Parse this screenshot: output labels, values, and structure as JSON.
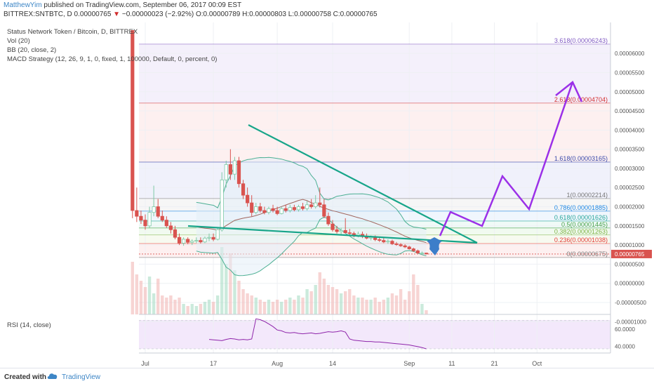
{
  "header": {
    "author": "MatthewYim",
    "published": " published on TradingView.com, September 06, 2017 00:09 EST",
    "symbol_line_prefix": "BITTREX:SNTBTC, D  0.00000765 ",
    "change_arrow": "▼",
    "change": " −0.00000023 (−2.92%)",
    "ohlc": " O:0.00000789 H:0.00000803 L:0.00000758 C:0.00000765"
  },
  "legend": {
    "title": "Status Network Token / Bitcoin, D, BITTREX",
    "vol": "Vol (20)",
    "bb": "BB (20, close, 2)",
    "macd": "MACD Strategy (12, 26, 9, 1, 0, fixed, 1, 100000, Default, 0, percent, 0)"
  },
  "rsi_label": "RSI (14, close)",
  "footer": {
    "created_with": "Created with",
    "brand": "TradingView"
  },
  "colors": {
    "up": "#7ec9a6",
    "down": "#d9534f",
    "trend": "#17a589",
    "projection": "#9b30e8",
    "arrow": "#3d7ec9",
    "rsi": "#8e24aa",
    "bb": "#4caf93",
    "axis": "#555555"
  },
  "chart_data": {
    "type": "candlestick",
    "title": "Status Network Token / Bitcoin, D, BITTREX",
    "x_tick_labels": [
      "Jul",
      "17",
      "Aug",
      "14",
      "Sep",
      "11",
      "21",
      "Oct"
    ],
    "x_tick_dates": [
      "2017-07-01",
      "2017-07-17",
      "2017-08-01",
      "2017-08-14",
      "2017-09-01",
      "2017-09-11",
      "2017-09-21",
      "2017-10-01"
    ],
    "y_tick_labels": [
      "0.00006000",
      "0.00005500",
      "0.00005000",
      "0.00004500",
      "0.00004000",
      "0.00003500",
      "0.00003000",
      "0.00002500",
      "0.00002000",
      "0.00001500",
      "0.00001000",
      "0.00000500",
      "0.00000000",
      "-0.00000500",
      "-0.00001000"
    ],
    "current_price": "0.00000765",
    "fib_levels": [
      {
        "label": "3.618(0.00006243)",
        "value": 6.243e-05,
        "color": "#7e57c2"
      },
      {
        "label": "2.618(0.00004704)",
        "value": 4.704e-05,
        "color": "#d32f2f"
      },
      {
        "label": "1.618(0.00003165)",
        "value": 3.165e-05,
        "color": "#3949ab"
      },
      {
        "label": "1(0.00002214)",
        "value": 2.214e-05,
        "color": "#777777"
      },
      {
        "label": "0.786(0.00001885)",
        "value": 1.885e-05,
        "color": "#1e88e5"
      },
      {
        "label": "0.618(0.00001626)",
        "value": 1.626e-05,
        "color": "#26a69a"
      },
      {
        "label": "0.5(0.00001445)",
        "value": 1.445e-05,
        "color": "#43a047"
      },
      {
        "label": "0.382(0.00001263)",
        "value": 1.263e-05,
        "color": "#7cb342"
      },
      {
        "label": "0.236(0.00001038)",
        "value": 1.038e-05,
        "color": "#e53935"
      },
      {
        "label": "0(0.00000675)",
        "value": 6.75e-06,
        "color": "#777777"
      }
    ],
    "candles": [
      {
        "date": "2017-06-28",
        "o": 6.6,
        "h": 6.6,
        "l": 1.7,
        "c": 1.9
      },
      {
        "date": "2017-06-29",
        "o": 1.9,
        "h": 2.5,
        "l": 1.6,
        "c": 1.75
      },
      {
        "date": "2017-06-30",
        "o": 1.75,
        "h": 1.9,
        "l": 1.55,
        "c": 1.65
      },
      {
        "date": "2017-07-01",
        "o": 1.65,
        "h": 1.8,
        "l": 1.4,
        "c": 1.5
      },
      {
        "date": "2017-07-02",
        "o": 1.5,
        "h": 2.0,
        "l": 1.45,
        "c": 1.85
      },
      {
        "date": "2017-07-03",
        "o": 1.85,
        "h": 2.55,
        "l": 1.75,
        "c": 2.0
      },
      {
        "date": "2017-07-04",
        "o": 2.0,
        "h": 2.2,
        "l": 1.7,
        "c": 1.75
      },
      {
        "date": "2017-07-05",
        "o": 1.75,
        "h": 1.9,
        "l": 1.6,
        "c": 1.65
      },
      {
        "date": "2017-07-06",
        "o": 1.65,
        "h": 1.75,
        "l": 1.45,
        "c": 1.5
      },
      {
        "date": "2017-07-07",
        "o": 1.5,
        "h": 1.6,
        "l": 1.3,
        "c": 1.4
      },
      {
        "date": "2017-07-08",
        "o": 1.4,
        "h": 1.5,
        "l": 1.15,
        "c": 1.2
      },
      {
        "date": "2017-07-09",
        "o": 1.2,
        "h": 1.3,
        "l": 1.0,
        "c": 1.05
      },
      {
        "date": "2017-07-10",
        "o": 1.05,
        "h": 1.2,
        "l": 0.98,
        "c": 1.15
      },
      {
        "date": "2017-07-11",
        "o": 1.15,
        "h": 1.2,
        "l": 1.02,
        "c": 1.07
      },
      {
        "date": "2017-07-12",
        "o": 1.07,
        "h": 1.15,
        "l": 1.0,
        "c": 1.1
      },
      {
        "date": "2017-07-13",
        "o": 1.1,
        "h": 1.2,
        "l": 1.05,
        "c": 1.12
      },
      {
        "date": "2017-07-14",
        "o": 1.12,
        "h": 1.2,
        "l": 1.04,
        "c": 1.08
      },
      {
        "date": "2017-07-15",
        "o": 1.08,
        "h": 1.22,
        "l": 1.05,
        "c": 1.18
      },
      {
        "date": "2017-07-16",
        "o": 1.18,
        "h": 1.3,
        "l": 1.1,
        "c": 1.2
      },
      {
        "date": "2017-07-17",
        "o": 1.2,
        "h": 1.3,
        "l": 1.1,
        "c": 1.15
      },
      {
        "date": "2017-07-18",
        "o": 1.15,
        "h": 1.45,
        "l": 1.12,
        "c": 1.4
      },
      {
        "date": "2017-07-19",
        "o": 1.4,
        "h": 2.9,
        "l": 1.35,
        "c": 2.7
      },
      {
        "date": "2017-07-20",
        "o": 2.7,
        "h": 3.2,
        "l": 2.5,
        "c": 3.1
      },
      {
        "date": "2017-07-21",
        "o": 3.1,
        "h": 3.5,
        "l": 2.7,
        "c": 2.85
      },
      {
        "date": "2017-07-22",
        "o": 2.85,
        "h": 3.3,
        "l": 2.7,
        "c": 3.2
      },
      {
        "date": "2017-07-23",
        "o": 3.2,
        "h": 3.3,
        "l": 2.5,
        "c": 2.6
      },
      {
        "date": "2017-07-24",
        "o": 2.6,
        "h": 2.7,
        "l": 2.2,
        "c": 2.3
      },
      {
        "date": "2017-07-25",
        "o": 2.3,
        "h": 2.5,
        "l": 2.0,
        "c": 2.1
      },
      {
        "date": "2017-07-26",
        "o": 2.1,
        "h": 2.3,
        "l": 1.75,
        "c": 1.85
      },
      {
        "date": "2017-07-27",
        "o": 1.85,
        "h": 2.1,
        "l": 1.8,
        "c": 2.0
      },
      {
        "date": "2017-07-28",
        "o": 2.0,
        "h": 2.1,
        "l": 1.85,
        "c": 1.9
      },
      {
        "date": "2017-07-29",
        "o": 1.9,
        "h": 2.0,
        "l": 1.8,
        "c": 1.85
      },
      {
        "date": "2017-07-30",
        "o": 1.85,
        "h": 2.0,
        "l": 1.8,
        "c": 1.95
      },
      {
        "date": "2017-07-31",
        "o": 1.95,
        "h": 2.05,
        "l": 1.85,
        "c": 1.9
      },
      {
        "date": "2017-08-01",
        "o": 1.9,
        "h": 2.0,
        "l": 1.78,
        "c": 1.82
      },
      {
        "date": "2017-08-02",
        "o": 1.82,
        "h": 2.0,
        "l": 1.8,
        "c": 1.95
      },
      {
        "date": "2017-08-03",
        "o": 1.95,
        "h": 2.05,
        "l": 1.85,
        "c": 1.9
      },
      {
        "date": "2017-08-04",
        "o": 1.9,
        "h": 2.05,
        "l": 1.85,
        "c": 1.98
      },
      {
        "date": "2017-08-05",
        "o": 1.98,
        "h": 2.05,
        "l": 1.88,
        "c": 1.92
      },
      {
        "date": "2017-08-06",
        "o": 1.92,
        "h": 2.05,
        "l": 1.87,
        "c": 2.0
      },
      {
        "date": "2017-08-07",
        "o": 2.0,
        "h": 2.1,
        "l": 1.9,
        "c": 1.95
      },
      {
        "date": "2017-08-08",
        "o": 1.95,
        "h": 2.15,
        "l": 1.9,
        "c": 2.05
      },
      {
        "date": "2017-08-09",
        "o": 2.05,
        "h": 2.2,
        "l": 1.95,
        "c": 2.0
      },
      {
        "date": "2017-08-10",
        "o": 2.0,
        "h": 2.3,
        "l": 1.95,
        "c": 2.1
      },
      {
        "date": "2017-08-11",
        "o": 2.1,
        "h": 2.5,
        "l": 1.98,
        "c": 2.05
      },
      {
        "date": "2017-08-12",
        "o": 2.05,
        "h": 2.2,
        "l": 1.7,
        "c": 1.75
      },
      {
        "date": "2017-08-13",
        "o": 1.75,
        "h": 1.85,
        "l": 1.5,
        "c": 1.55
      },
      {
        "date": "2017-08-14",
        "o": 1.55,
        "h": 1.65,
        "l": 1.35,
        "c": 1.4
      },
      {
        "date": "2017-08-15",
        "o": 1.4,
        "h": 1.5,
        "l": 1.3,
        "c": 1.35
      },
      {
        "date": "2017-08-16",
        "o": 1.35,
        "h": 1.45,
        "l": 1.28,
        "c": 1.38
      },
      {
        "date": "2017-08-17",
        "o": 1.38,
        "h": 1.7,
        "l": 1.3,
        "c": 1.32
      },
      {
        "date": "2017-08-18",
        "o": 1.32,
        "h": 1.42,
        "l": 1.27,
        "c": 1.3
      },
      {
        "date": "2017-08-19",
        "o": 1.3,
        "h": 1.35,
        "l": 1.2,
        "c": 1.25
      },
      {
        "date": "2017-08-20",
        "o": 1.25,
        "h": 1.35,
        "l": 1.2,
        "c": 1.28
      },
      {
        "date": "2017-08-21",
        "o": 1.28,
        "h": 1.35,
        "l": 1.18,
        "c": 1.22
      },
      {
        "date": "2017-08-22",
        "o": 1.22,
        "h": 1.3,
        "l": 1.15,
        "c": 1.18
      },
      {
        "date": "2017-08-23",
        "o": 1.18,
        "h": 1.25,
        "l": 1.12,
        "c": 1.2
      },
      {
        "date": "2017-08-24",
        "o": 1.2,
        "h": 1.25,
        "l": 1.1,
        "c": 1.14
      },
      {
        "date": "2017-08-25",
        "o": 1.14,
        "h": 1.2,
        "l": 1.08,
        "c": 1.12
      },
      {
        "date": "2017-08-26",
        "o": 1.12,
        "h": 1.18,
        "l": 1.05,
        "c": 1.08
      },
      {
        "date": "2017-08-27",
        "o": 1.08,
        "h": 1.15,
        "l": 1.03,
        "c": 1.1
      },
      {
        "date": "2017-08-28",
        "o": 1.1,
        "h": 1.14,
        "l": 1.0,
        "c": 1.03
      },
      {
        "date": "2017-08-29",
        "o": 1.03,
        "h": 1.08,
        "l": 0.98,
        "c": 1.01
      },
      {
        "date": "2017-08-30",
        "o": 1.01,
        "h": 1.05,
        "l": 0.95,
        "c": 0.98
      },
      {
        "date": "2017-08-31",
        "o": 0.98,
        "h": 1.02,
        "l": 0.92,
        "c": 0.95
      },
      {
        "date": "2017-09-01",
        "o": 0.95,
        "h": 0.98,
        "l": 0.88,
        "c": 0.9
      },
      {
        "date": "2017-09-02",
        "o": 0.9,
        "h": 0.93,
        "l": 0.82,
        "c": 0.85
      },
      {
        "date": "2017-09-03",
        "o": 0.85,
        "h": 0.88,
        "l": 0.78,
        "c": 0.79
      },
      {
        "date": "2017-09-04",
        "o": 0.79,
        "h": 0.83,
        "l": 0.76,
        "c": 0.79
      },
      {
        "date": "2017-09-05",
        "o": 0.79,
        "h": 0.8,
        "l": 0.758,
        "c": 0.765
      }
    ],
    "price_scale_note": "candle values are in units of 0.00001 BTC",
    "rsi": {
      "label": "RSI (14, close)",
      "y_tick_labels": [
        "60.0000",
        "40.0000"
      ],
      "values": [
        48.0,
        47.5,
        47.0,
        46.5,
        48.0,
        49.0,
        48.5,
        47.5,
        48.0,
        47.5,
        48.5,
        72.0,
        71.0,
        69.0,
        66.0,
        63.0,
        59.0,
        58.0,
        56.0,
        55.5,
        56.0,
        55.0,
        54.5,
        55.0,
        55.5,
        54.5,
        55.0,
        56.0,
        57.0,
        56.5,
        57.0,
        58.0,
        56.5,
        48.5,
        47.0,
        46.5,
        46.0,
        45.5,
        45.5,
        45.0,
        45.0,
        44.5,
        44.0,
        43.5,
        43.0,
        42.5,
        42.0,
        41.5,
        40.5,
        39.5,
        38.5,
        37.0
      ]
    }
  }
}
